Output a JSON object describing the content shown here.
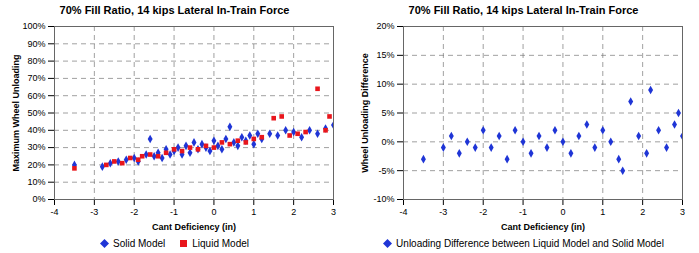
{
  "chart_data": [
    {
      "type": "scatter",
      "title": "70% Fill Ratio, 14 kips Lateral In-Train Force",
      "x_label": "Cant Deficiency (in)",
      "y_label": "Maximum Wheel Unloading",
      "xlim": [
        -4,
        3
      ],
      "xticks": [
        -4,
        -3,
        -2,
        -1,
        0,
        1,
        2,
        3
      ],
      "ylim": [
        0,
        100
      ],
      "yticks": [
        {
          "value": 0,
          "label": "0%"
        },
        {
          "value": 10,
          "label": "10%"
        },
        {
          "value": 20,
          "label": "20%"
        },
        {
          "value": 30,
          "label": "30%"
        },
        {
          "value": 40,
          "label": "40%"
        },
        {
          "value": 50,
          "label": "50%"
        },
        {
          "value": 60,
          "label": "60%"
        },
        {
          "value": 70,
          "label": "70%"
        },
        {
          "value": 80,
          "label": "80%"
        },
        {
          "value": 90,
          "label": "90%"
        },
        {
          "value": 100,
          "label": "100%"
        }
      ],
      "grid": true,
      "legend": "bottom",
      "series": [
        {
          "name": "Solid Model",
          "color": "#1f35d6",
          "marker": "diamond",
          "x": [
            -3.5,
            -2.8,
            -2.6,
            -2.4,
            -2.2,
            -2.0,
            -1.9,
            -1.7,
            -1.6,
            -1.5,
            -1.4,
            -1.3,
            -1.2,
            -1.1,
            -1.0,
            -0.9,
            -0.8,
            -0.7,
            -0.6,
            -0.5,
            -0.4,
            -0.3,
            -0.2,
            -0.1,
            0.0,
            0.1,
            0.2,
            0.3,
            0.4,
            0.5,
            0.6,
            0.7,
            0.8,
            0.9,
            1.0,
            1.1,
            1.2,
            1.4,
            1.6,
            1.8,
            2.0,
            2.2,
            2.4,
            2.6,
            2.8,
            3.0
          ],
          "values": [
            20,
            19,
            21,
            22,
            23,
            24,
            22,
            26,
            35,
            25,
            27,
            24,
            29,
            26,
            28,
            30,
            26,
            31,
            27,
            33,
            29,
            32,
            30,
            28,
            34,
            31,
            29,
            35,
            42,
            33,
            31,
            36,
            34,
            37,
            32,
            38,
            35,
            38,
            37,
            40,
            39,
            36,
            40,
            38,
            41,
            43
          ]
        },
        {
          "name": "Liquid Model",
          "color": "#e8161c",
          "marker": "square",
          "x": [
            -3.5,
            -2.7,
            -2.5,
            -2.3,
            -2.1,
            -1.9,
            -1.8,
            -1.6,
            -1.4,
            -1.2,
            -1.0,
            -0.8,
            -0.6,
            -0.4,
            -0.2,
            0.0,
            0.2,
            0.4,
            0.6,
            0.8,
            1.0,
            1.2,
            1.5,
            1.7,
            1.9,
            2.1,
            2.3,
            2.6,
            2.8,
            2.9
          ],
          "values": [
            18,
            20,
            22,
            21,
            24,
            23,
            25,
            26,
            25,
            27,
            29,
            28,
            30,
            29,
            31,
            30,
            33,
            32,
            34,
            33,
            35,
            36,
            47,
            48,
            37,
            38,
            39,
            64,
            40,
            48
          ]
        }
      ]
    },
    {
      "type": "scatter",
      "title": "70% Fill Ratio, 14 kips Lateral In-Train Force",
      "x_label": "Cant Deficiency (in)",
      "y_label": "Wheel Unloading Difference",
      "xlim": [
        -4,
        3
      ],
      "xticks": [
        -4,
        -3,
        -2,
        -1,
        0,
        1,
        2,
        3
      ],
      "ylim": [
        -10,
        20
      ],
      "yticks": [
        {
          "value": -10,
          "label": "-10%"
        },
        {
          "value": -5,
          "label": "-5%"
        },
        {
          "value": 0,
          "label": "0%"
        },
        {
          "value": 5,
          "label": "5%"
        },
        {
          "value": 10,
          "label": "10%"
        },
        {
          "value": 15,
          "label": "15%"
        },
        {
          "value": 20,
          "label": "20%"
        }
      ],
      "grid": true,
      "legend": "bottom",
      "series": [
        {
          "name": "Unloading Difference between Liquid Model and Solid Model",
          "color": "#1f35d6",
          "marker": "diamond",
          "x": [
            -3.5,
            -3.0,
            -2.8,
            -2.6,
            -2.4,
            -2.2,
            -2.0,
            -1.8,
            -1.6,
            -1.4,
            -1.2,
            -1.0,
            -0.8,
            -0.6,
            -0.4,
            -0.2,
            0.0,
            0.2,
            0.4,
            0.6,
            0.8,
            1.0,
            1.2,
            1.4,
            1.5,
            1.7,
            1.9,
            2.1,
            2.2,
            2.4,
            2.6,
            2.8,
            2.9,
            3.0
          ],
          "values": [
            -3,
            -1,
            1,
            -2,
            0,
            -1,
            2,
            -1,
            1,
            -3,
            2,
            0,
            -2,
            1,
            -1,
            2,
            0,
            -2,
            1,
            3,
            -1,
            2,
            0,
            -3,
            -5,
            7,
            1,
            -2,
            9,
            2,
            -1,
            3,
            5,
            1
          ]
        }
      ]
    }
  ]
}
